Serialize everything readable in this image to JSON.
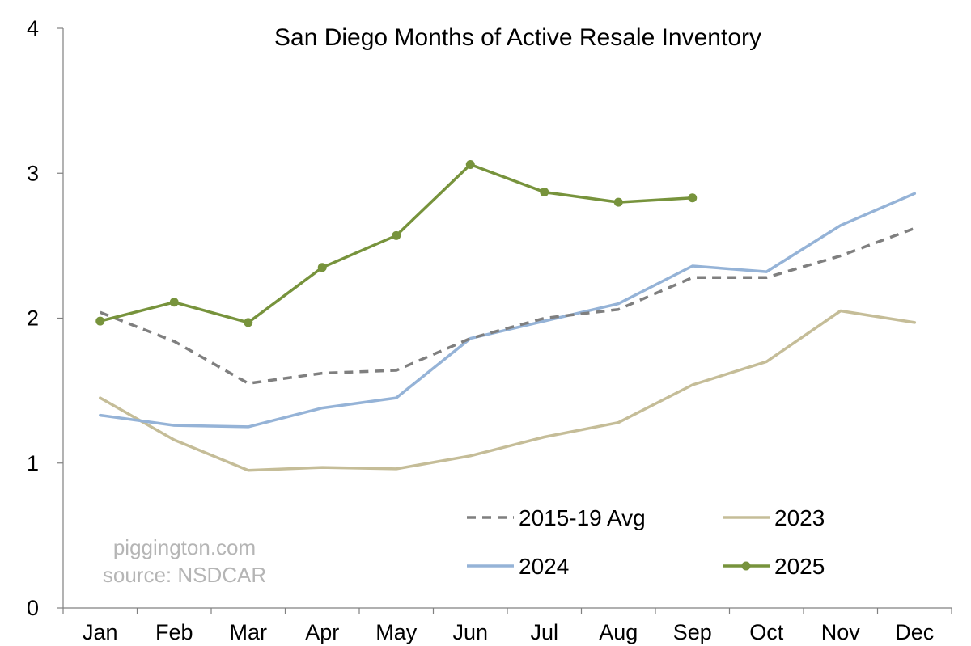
{
  "chart_data": {
    "type": "line",
    "title": "San Diego Months of Active Resale Inventory",
    "categories": [
      "Jan",
      "Feb",
      "Mar",
      "Apr",
      "May",
      "Jun",
      "Jul",
      "Aug",
      "Sep",
      "Oct",
      "Nov",
      "Dec"
    ],
    "ylim": [
      0,
      4
    ],
    "yticks": [
      0,
      1,
      2,
      3,
      4
    ],
    "grid": false,
    "legend_position": "bottom-right",
    "series": [
      {
        "name": "2015-19 Avg",
        "style": "dashed",
        "color": "#7f7f7f",
        "values": [
          2.04,
          1.84,
          1.55,
          1.62,
          1.64,
          1.86,
          2.0,
          2.06,
          2.28,
          2.28,
          2.43,
          2.62
        ]
      },
      {
        "name": "2023",
        "style": "solid",
        "color": "#c5bd98",
        "values": [
          1.45,
          1.16,
          0.95,
          0.97,
          0.96,
          1.05,
          1.18,
          1.28,
          1.54,
          1.7,
          2.05,
          1.97
        ]
      },
      {
        "name": "2024",
        "style": "solid",
        "color": "#95b3d7",
        "values": [
          1.33,
          1.26,
          1.25,
          1.38,
          1.45,
          1.86,
          1.98,
          2.1,
          2.36,
          2.32,
          2.64,
          2.86
        ]
      },
      {
        "name": "2025",
        "style": "solid-markers",
        "color": "#77933c",
        "values": [
          1.98,
          2.11,
          1.97,
          2.35,
          2.57,
          3.06,
          2.87,
          2.8,
          2.83,
          null,
          null,
          null
        ]
      }
    ],
    "annotations": [
      "piggington.com",
      "source: NSDCAR"
    ]
  }
}
